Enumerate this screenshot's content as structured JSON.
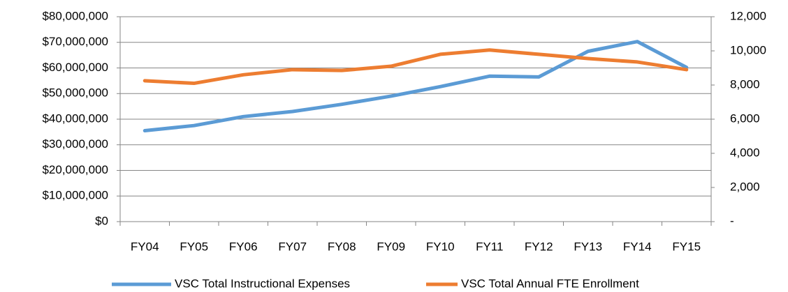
{
  "chart_data": {
    "type": "line",
    "categories": [
      "FY04",
      "FY05",
      "FY06",
      "FY07",
      "FY08",
      "FY09",
      "FY10",
      "FY11",
      "FY12",
      "FY13",
      "FY14",
      "FY15"
    ],
    "series": [
      {
        "name": "VSC Total Instructional Expenses",
        "color": "#5b9bd5",
        "values": [
          35500000,
          37500000,
          41000000,
          43000000,
          45800000,
          49000000,
          52700000,
          56800000,
          56500000,
          66500000,
          70300000,
          60200000
        ]
      },
      {
        "name": "VSC Total Annual FTE Enrollment",
        "color": "#ed7d31",
        "axis": "y2",
        "values": [
          8250,
          8100,
          8600,
          8900,
          8850,
          9100,
          9800,
          10050,
          9800,
          9550,
          9350,
          8900
        ]
      }
    ],
    "ylim": [
      0,
      80000000
    ],
    "yticks": [
      {
        "value": 0,
        "label": "$0"
      },
      {
        "value": 10000000,
        "label": "$10,000,000"
      },
      {
        "value": 20000000,
        "label": "$20,000,000"
      },
      {
        "value": 30000000,
        "label": "$30,000,000"
      },
      {
        "value": 40000000,
        "label": "$40,000,000"
      },
      {
        "value": 50000000,
        "label": "$50,000,000"
      },
      {
        "value": 60000000,
        "label": "$60,000,000"
      },
      {
        "value": 70000000,
        "label": "$70,000,000"
      },
      {
        "value": 80000000,
        "label": "$80,000,000"
      }
    ],
    "y2lim": [
      0,
      12000
    ],
    "y2ticks": [
      {
        "value": 0,
        "label": "-"
      },
      {
        "value": 2000,
        "label": "2,000"
      },
      {
        "value": 4000,
        "label": "4,000"
      },
      {
        "value": 6000,
        "label": "6,000"
      },
      {
        "value": 8000,
        "label": "8,000"
      },
      {
        "value": 10000,
        "label": "10,000"
      },
      {
        "value": 12000,
        "label": "12,000"
      }
    ],
    "grid": true,
    "legend": "bottom"
  }
}
